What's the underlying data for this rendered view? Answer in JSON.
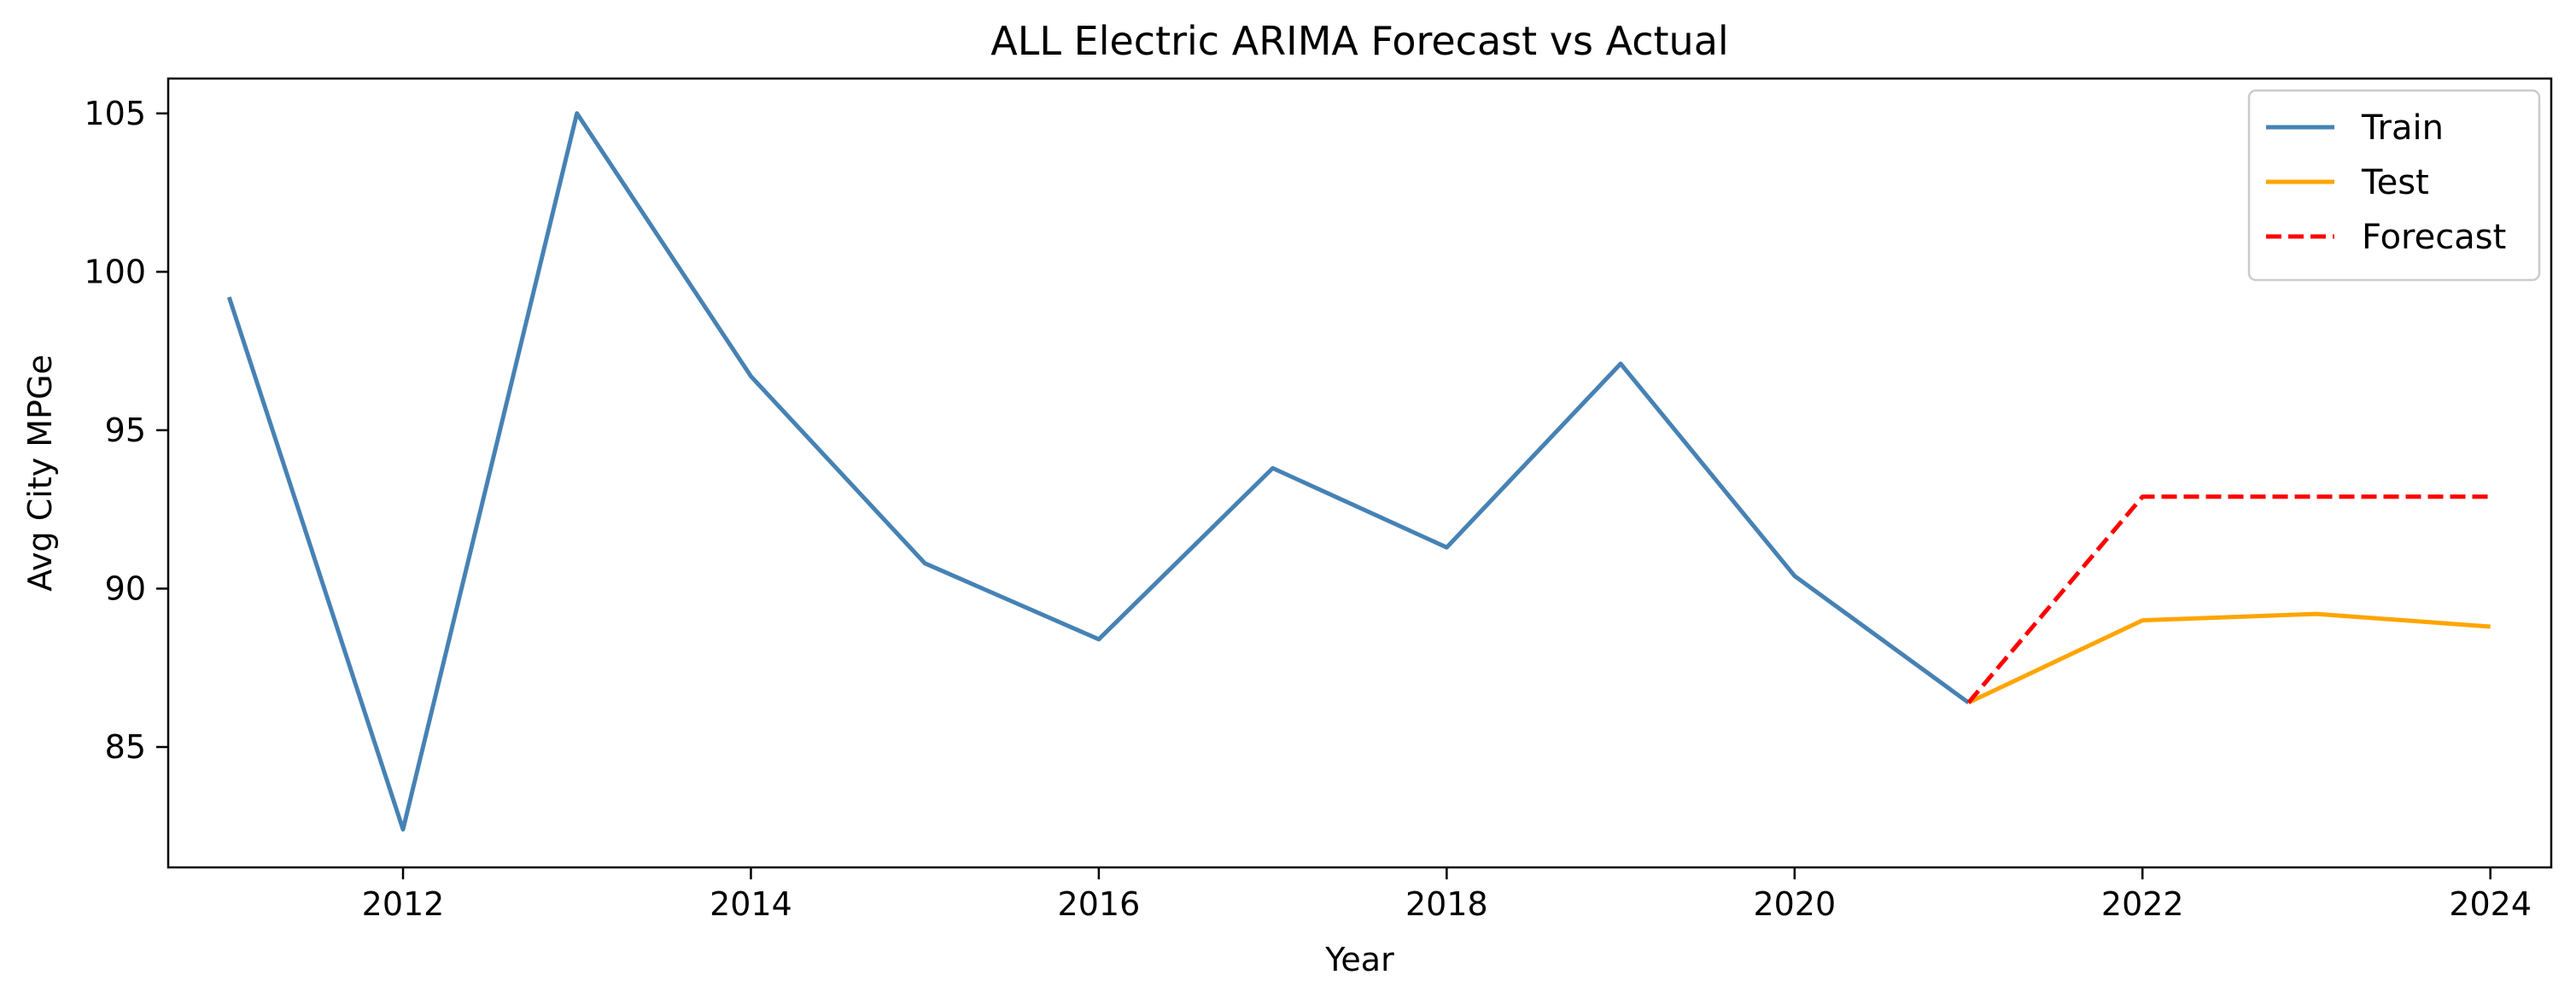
{
  "chart_data": {
    "type": "line",
    "title": "ALL Electric ARIMA Forecast vs Actual",
    "xlabel": "Year",
    "ylabel": "Avg City MPGe",
    "xlim": [
      2010.65,
      2024.35
    ],
    "ylim": [
      81.2,
      106.1
    ],
    "xticks": [
      2012,
      2014,
      2016,
      2018,
      2020,
      2022,
      2024
    ],
    "yticks": [
      85,
      90,
      95,
      100,
      105
    ],
    "grid": false,
    "legend_position": "top-right",
    "series": [
      {
        "name": "Train",
        "color": "#4682b4",
        "style": "solid",
        "x": [
          2011,
          2012,
          2013,
          2014,
          2015,
          2016,
          2017,
          2018,
          2019,
          2020,
          2021
        ],
        "y": [
          99.2,
          82.4,
          105.0,
          96.7,
          90.8,
          88.4,
          93.8,
          91.3,
          97.1,
          90.4,
          86.4
        ]
      },
      {
        "name": "Test",
        "color": "#ffa500",
        "style": "solid",
        "x": [
          2021,
          2022,
          2023,
          2024
        ],
        "y": [
          86.4,
          89.0,
          89.2,
          88.8
        ]
      },
      {
        "name": "Forecast",
        "color": "#ff0000",
        "style": "dashed",
        "x": [
          2021,
          2022,
          2023,
          2024
        ],
        "y": [
          86.4,
          92.9,
          92.9,
          92.9
        ]
      }
    ]
  }
}
